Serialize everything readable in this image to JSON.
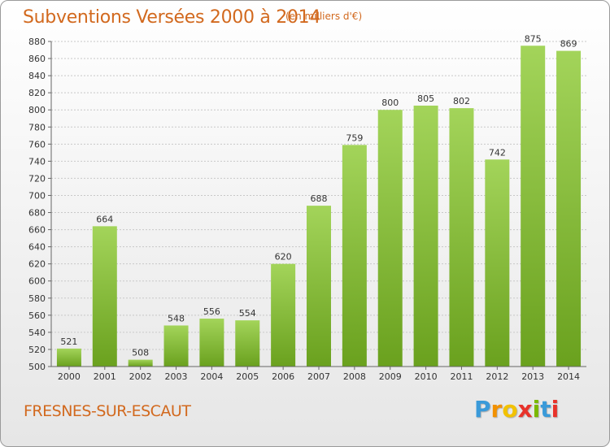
{
  "header": {
    "title": "Subventions Versées 2000 à 2014",
    "subtitle": "(en milliers d'€)"
  },
  "footer": {
    "commune": "FRESNES-SUR-ESCAUT",
    "logo_letters": [
      "P",
      "r",
      "o",
      "x",
      "i",
      "t",
      "i"
    ],
    "logo_colors": [
      "#3a9ad9",
      "#f29100",
      "#f2c200",
      "#e8322a",
      "#7ab800",
      "#3a9ad9",
      "#e8322a"
    ]
  },
  "colors": {
    "text_accent": "#d2691e",
    "bar_top": "#a3d45a",
    "bar_bottom": "#6aa11e"
  },
  "chart_data": {
    "type": "bar",
    "title": "Subventions Versées 2000 à 2014",
    "subtitle": "(en milliers d'€)",
    "categories": [
      "2000",
      "2001",
      "2002",
      "2003",
      "2004",
      "2005",
      "2006",
      "2007",
      "2008",
      "2009",
      "2010",
      "2011",
      "2012",
      "2013",
      "2014"
    ],
    "values": [
      521,
      664,
      508,
      548,
      556,
      554,
      620,
      688,
      759,
      800,
      805,
      802,
      742,
      875,
      869
    ],
    "ylim": [
      500,
      880
    ],
    "ytick_step": 20,
    "grid": true
  }
}
